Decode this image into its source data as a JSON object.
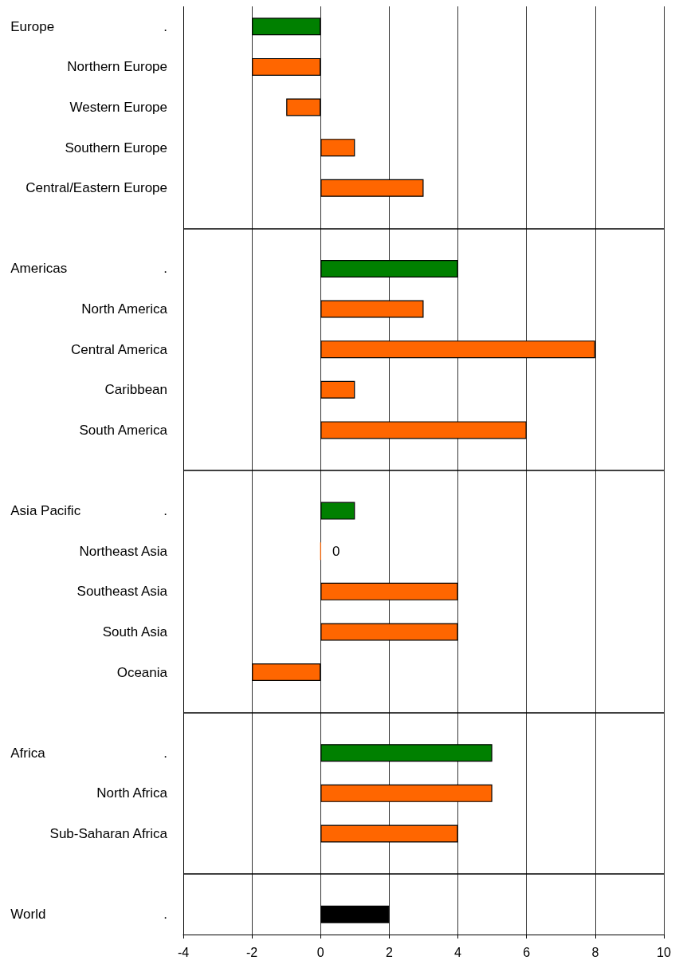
{
  "chart_data": {
    "type": "bar",
    "orientation": "horizontal",
    "categories": [
      "Europe .",
      "Northern Europe",
      "Western Europe",
      "Southern Europe",
      "Central/Eastern Europe",
      null,
      "Americas .",
      "North America",
      "Central America",
      "Caribbean",
      "South America",
      null,
      "Asia Pacific .",
      "Northeast Asia",
      "Southeast Asia",
      "South Asia",
      "Oceania",
      null,
      "Africa .",
      "North Africa",
      "Sub-Saharan Africa",
      null,
      "World ."
    ],
    "values": [
      -2,
      -2,
      -1,
      1,
      3,
      null,
      4,
      3,
      8,
      1,
      6,
      null,
      1,
      0,
      4,
      4,
      -2,
      null,
      5,
      5,
      4,
      null,
      2
    ],
    "colors": [
      "#008000",
      "#ff6600",
      "#ff6600",
      "#ff6600",
      "#ff6600",
      null,
      "#008000",
      "#ff6600",
      "#ff6600",
      "#ff6600",
      "#ff6600",
      null,
      "#008000",
      "#ff6600",
      "#ff6600",
      "#ff6600",
      "#ff6600",
      null,
      "#008000",
      "#ff6600",
      "#ff6600",
      null,
      "#000000"
    ],
    "value_labels": [
      null,
      null,
      null,
      null,
      null,
      null,
      null,
      null,
      null,
      null,
      null,
      null,
      null,
      "0",
      null,
      null,
      null,
      null,
      null,
      null,
      null,
      null,
      null
    ],
    "xlim": [
      -4,
      10
    ],
    "xticks": [
      -4,
      -2,
      0,
      2,
      4,
      6,
      8,
      10
    ],
    "grid": "x"
  }
}
